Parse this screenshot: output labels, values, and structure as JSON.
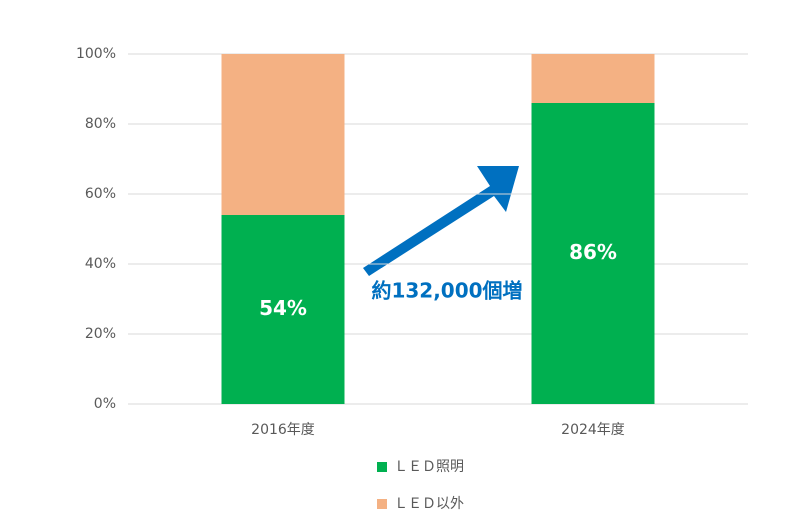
{
  "chart_data": {
    "type": "stacked_bar",
    "categories": [
      "2016年度",
      "2024年度"
    ],
    "series": [
      {
        "name": "ＬＥＤ照明",
        "color": "#00b050",
        "values": [
          54,
          86
        ],
        "value_labels": [
          "54%",
          "86%"
        ]
      },
      {
        "name": "ＬＥＤ以外",
        "color": "#f4b183",
        "values": [
          46,
          14
        ]
      }
    ],
    "ylim": [
      0,
      100
    ],
    "yticks": [
      {
        "value": 0,
        "label": "0%"
      },
      {
        "value": 20,
        "label": "20%"
      },
      {
        "value": 40,
        "label": "40%"
      },
      {
        "value": 60,
        "label": "60%"
      },
      {
        "value": 80,
        "label": "80%"
      },
      {
        "value": 100,
        "label": "100%"
      }
    ],
    "grid": true,
    "legend": "bottom",
    "annotation": "約132,000個増"
  }
}
